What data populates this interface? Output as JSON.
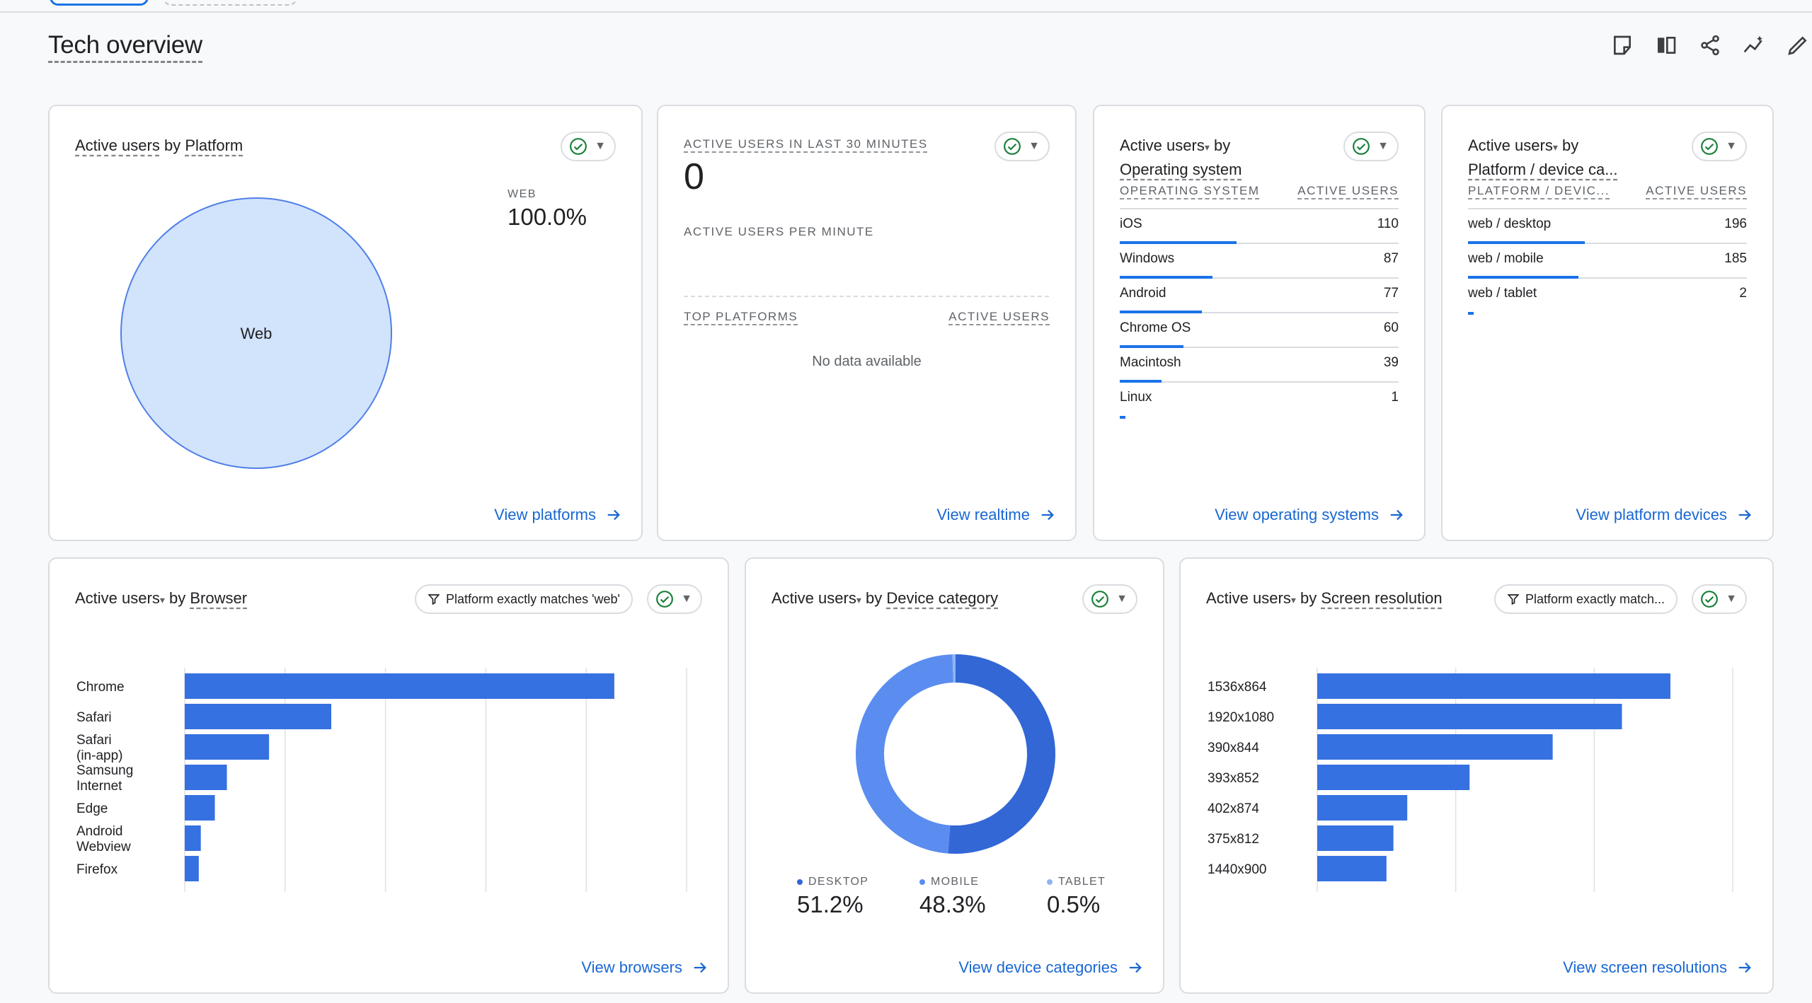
{
  "page": {
    "title": "Tech overview",
    "toolbar_icons": [
      "note-icon",
      "compare-icon",
      "share-icon",
      "insights-icon",
      "edit-icon"
    ]
  },
  "colors": {
    "accent": "#1a73e8",
    "bar": "#3571e0",
    "desktop": "#3367d6",
    "mobile": "#5a8def",
    "tablet": "#8fb4f5",
    "pie_fill": "#d2e3fc"
  },
  "cards": {
    "platform": {
      "metric": "Active users",
      "by": "by",
      "dimension": "Platform",
      "legend_label": "WEB",
      "legend_value": "100.0%",
      "slice_label": "Web",
      "link": "View platforms"
    },
    "realtime": {
      "title": "ACTIVE USERS IN LAST 30 MINUTES",
      "value": "0",
      "per_minute": "ACTIVE USERS PER MINUTE",
      "col_platforms": "TOP PLATFORMS",
      "col_users": "ACTIVE USERS",
      "empty": "No data available",
      "link": "View realtime"
    },
    "os": {
      "metric": "Active users",
      "by": "by",
      "dimension": "Operating system",
      "col_dim": "OPERATING SYSTEM",
      "col_users": "ACTIVE USERS",
      "rows": [
        {
          "label": "iOS",
          "value": 110
        },
        {
          "label": "Windows",
          "value": 87
        },
        {
          "label": "Android",
          "value": 77
        },
        {
          "label": "Chrome OS",
          "value": 60
        },
        {
          "label": "Macintosh",
          "value": 39
        },
        {
          "label": "Linux",
          "value": 1
        }
      ],
      "link": "View operating systems"
    },
    "device": {
      "metric": "Active users",
      "by": "by",
      "dimension": "Platform / device ca...",
      "col_dim": "PLATFORM / DEVIC...",
      "col_users": "ACTIVE USERS",
      "rows": [
        {
          "label": "web / desktop",
          "value": 196
        },
        {
          "label": "web / mobile",
          "value": 185
        },
        {
          "label": "web / tablet",
          "value": 2
        }
      ],
      "link": "View platform devices"
    },
    "browser": {
      "metric": "Active users",
      "by": "by",
      "dimension": "Browser",
      "filter": "Platform exactly matches 'web'",
      "link": "View browsers"
    },
    "category": {
      "metric": "Active users",
      "by": "by",
      "dimension": "Device category",
      "legend": [
        {
          "name": "DESKTOP",
          "value": "51.2%"
        },
        {
          "name": "MOBILE",
          "value": "48.3%"
        },
        {
          "name": "TABLET",
          "value": "0.5%"
        }
      ],
      "link": "View device categories"
    },
    "screen": {
      "metric": "Active users",
      "by": "by",
      "dimension": "Screen resolution",
      "filter": "Platform exactly match...",
      "link": "View screen resolutions"
    }
  },
  "chart_data": [
    {
      "type": "pie",
      "title": "Active users by Platform",
      "categories": [
        "Web"
      ],
      "values": [
        100.0
      ]
    },
    {
      "type": "bar",
      "orientation": "horizontal",
      "title": "Active users by Browser",
      "categories": [
        "Chrome",
        "Safari",
        "Safari (in-app)",
        "Samsung Internet",
        "Edge",
        "Android Webview",
        "Firefox"
      ],
      "values": [
        214,
        73,
        42,
        21,
        15,
        8,
        7
      ],
      "xlim": [
        0,
        250
      ],
      "xticks": [
        0,
        50,
        100,
        150,
        200,
        250
      ],
      "grid": true
    },
    {
      "type": "pie",
      "variant": "donut",
      "title": "Active users by Device category",
      "categories": [
        "DESKTOP",
        "MOBILE",
        "TABLET"
      ],
      "values": [
        51.2,
        48.3,
        0.5
      ]
    },
    {
      "type": "bar",
      "orientation": "horizontal",
      "title": "Active users by Screen resolution",
      "categories": [
        "1536x864",
        "1920x1080",
        "390x844",
        "393x852",
        "402x874",
        "375x812",
        "1440x900"
      ],
      "values": [
        51,
        44,
        34,
        22,
        13,
        11,
        10
      ],
      "xlim": [
        0,
        60
      ],
      "xticks": [
        0,
        20,
        40,
        60
      ],
      "grid": true
    }
  ]
}
